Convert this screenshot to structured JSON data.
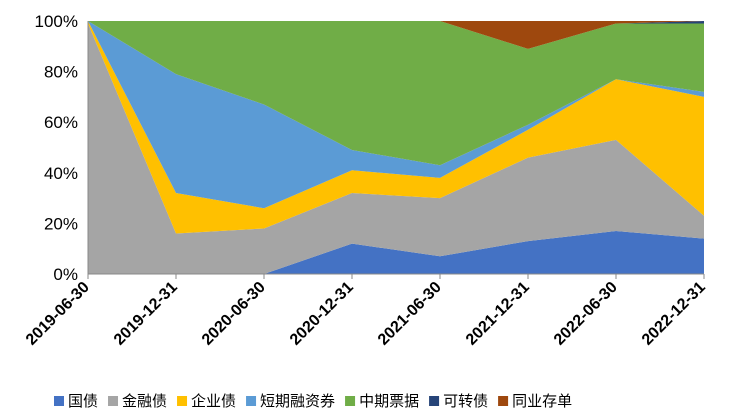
{
  "chart_data": {
    "type": "area",
    "stacked": true,
    "percent": true,
    "categories": [
      "2019-06-30",
      "2019-12-31",
      "2020-06-30",
      "2020-12-31",
      "2021-06-30",
      "2021-12-31",
      "2022-06-30",
      "2022-12-31"
    ],
    "series": [
      {
        "name": "国债",
        "color": "#4472c4",
        "values": [
          0,
          0,
          0,
          12,
          7,
          13,
          17,
          14
        ]
      },
      {
        "name": "金融债",
        "color": "#a5a5a5",
        "values": [
          99,
          16,
          18,
          20,
          23,
          33,
          36,
          9
        ]
      },
      {
        "name": "企业债",
        "color": "#ffc000",
        "values": [
          1,
          16,
          8,
          9,
          8,
          11,
          24,
          47
        ]
      },
      {
        "name": "短期融资券",
        "color": "#5b9bd5",
        "values": [
          0,
          47,
          41,
          8,
          5,
          2,
          0,
          2
        ]
      },
      {
        "name": "中期票据",
        "color": "#70ad47",
        "values": [
          0,
          21,
          33,
          51,
          57,
          30,
          22,
          27
        ]
      },
      {
        "name": "可转债",
        "color": "#264478",
        "values": [
          0,
          0,
          0,
          0,
          0,
          0,
          0,
          1
        ]
      },
      {
        "name": "同业存单",
        "color": "#9e480e",
        "values": [
          0,
          0,
          0,
          0,
          0,
          11,
          1,
          0
        ]
      }
    ],
    "y_ticks": [
      "0%",
      "20%",
      "40%",
      "60%",
      "80%",
      "100%"
    ],
    "ylim": [
      0,
      100
    ],
    "legend_position": "bottom",
    "grid": false
  }
}
